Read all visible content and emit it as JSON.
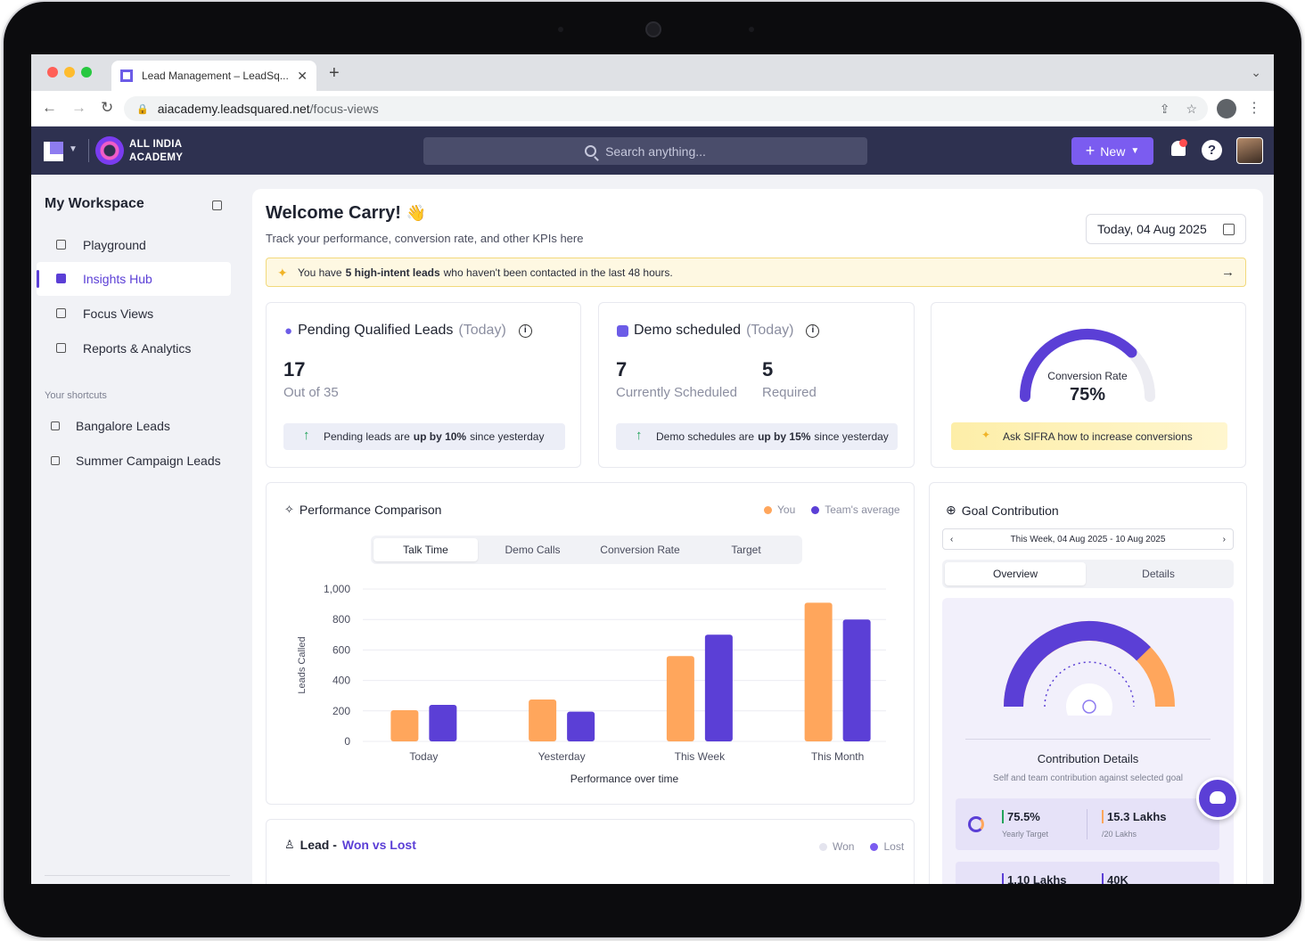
{
  "browser": {
    "tab_title": "Lead Management – LeadSq...",
    "url_host": "aiacademy.leadsquared.net",
    "url_path": "/focus-views"
  },
  "header": {
    "org_line1": "ALL INDIA",
    "org_line2": "ACADEMY",
    "search_placeholder": "Search anything...",
    "new_label": "New"
  },
  "sidebar": {
    "title": "My Workspace",
    "items": [
      {
        "label": "Playground"
      },
      {
        "label": "Insights Hub"
      },
      {
        "label": "Focus Views"
      },
      {
        "label": "Reports & Analytics"
      }
    ],
    "shortcuts_title": "Your shortcuts",
    "shortcuts": [
      {
        "label": "Bangalore Leads"
      },
      {
        "label": "Summer Campaign Leads"
      }
    ]
  },
  "main": {
    "welcome": "Welcome Carry!",
    "welcome_emoji": "👋",
    "subtitle": "Track your performance, conversion rate, and other KPIs here",
    "date": "Today, 04 Aug 2025",
    "alert": {
      "prefix": "You have",
      "bold": "5 high-intent leads",
      "suffix": "who haven't been contacted in the last 48 hours."
    }
  },
  "kpi": {
    "pending": {
      "title": "Pending Qualified Leads",
      "qual": "(Today)",
      "value": "17",
      "sub": "Out of 35",
      "pill_prefix": "Pending leads are",
      "pill_bold": "up by 10%",
      "pill_suffix": "since yesterday"
    },
    "demo": {
      "title": "Demo scheduled",
      "qual": "(Today)",
      "value1": "7",
      "sub1": "Currently Scheduled",
      "value2": "5",
      "sub2": "Required",
      "pill_prefix": "Demo schedules are",
      "pill_bold": "up by 15%",
      "pill_suffix": "since yesterday"
    },
    "conversion": {
      "label": "Conversion Rate",
      "value": "75%",
      "fraction": 0.75,
      "cta": "Ask SIFRA how to increase conversions"
    }
  },
  "performance": {
    "title": "Performance Comparison",
    "legend_you": "You",
    "legend_team": "Team's average",
    "tabs": [
      "Talk Time",
      "Demo Calls",
      "Conversion Rate",
      "Target"
    ]
  },
  "chart_data": {
    "type": "bar",
    "categories": [
      "Today",
      "Yesterday",
      "This Week",
      "This Month"
    ],
    "series": [
      {
        "name": "You",
        "color": "#ffa65c",
        "values": [
          205,
          275,
          560,
          910
        ]
      },
      {
        "name": "Team's average",
        "color": "#5b3fd6",
        "values": [
          240,
          195,
          700,
          800
        ]
      }
    ],
    "xlabel": "Performance over time",
    "ylabel": "Leads Called",
    "ylim": [
      0,
      1000
    ],
    "yticks": [
      "0",
      "200",
      "400",
      "600",
      "800",
      "1,000"
    ],
    "grid": true,
    "legend": "top-right"
  },
  "goal": {
    "title": "Goal Contribution",
    "range": "This Week, 04 Aug 2025 - 10 Aug 2025",
    "tabs": [
      "Overview",
      "Details"
    ],
    "you_fraction": 0.755,
    "details_title": "Contribution Details",
    "details_sub": "Self and team contribution against selected goal",
    "stats": [
      {
        "value": "75.5%",
        "label": "Yearly Target"
      },
      {
        "value": "15.3 Lakhs",
        "label": "/20 Lakhs"
      }
    ],
    "stats2": [
      {
        "value": "1.10 Lakhs"
      },
      {
        "value": "40K"
      }
    ]
  },
  "wonlost": {
    "title_prefix": "Lead -",
    "title_highlight": "Won vs Lost",
    "legend_won": "Won",
    "legend_lost": "Lost"
  },
  "colors": {
    "accent": "#5b3fd6",
    "orange": "#ffa65c",
    "header_bg": "#2e3150",
    "alert_bg": "#fef8e2"
  }
}
